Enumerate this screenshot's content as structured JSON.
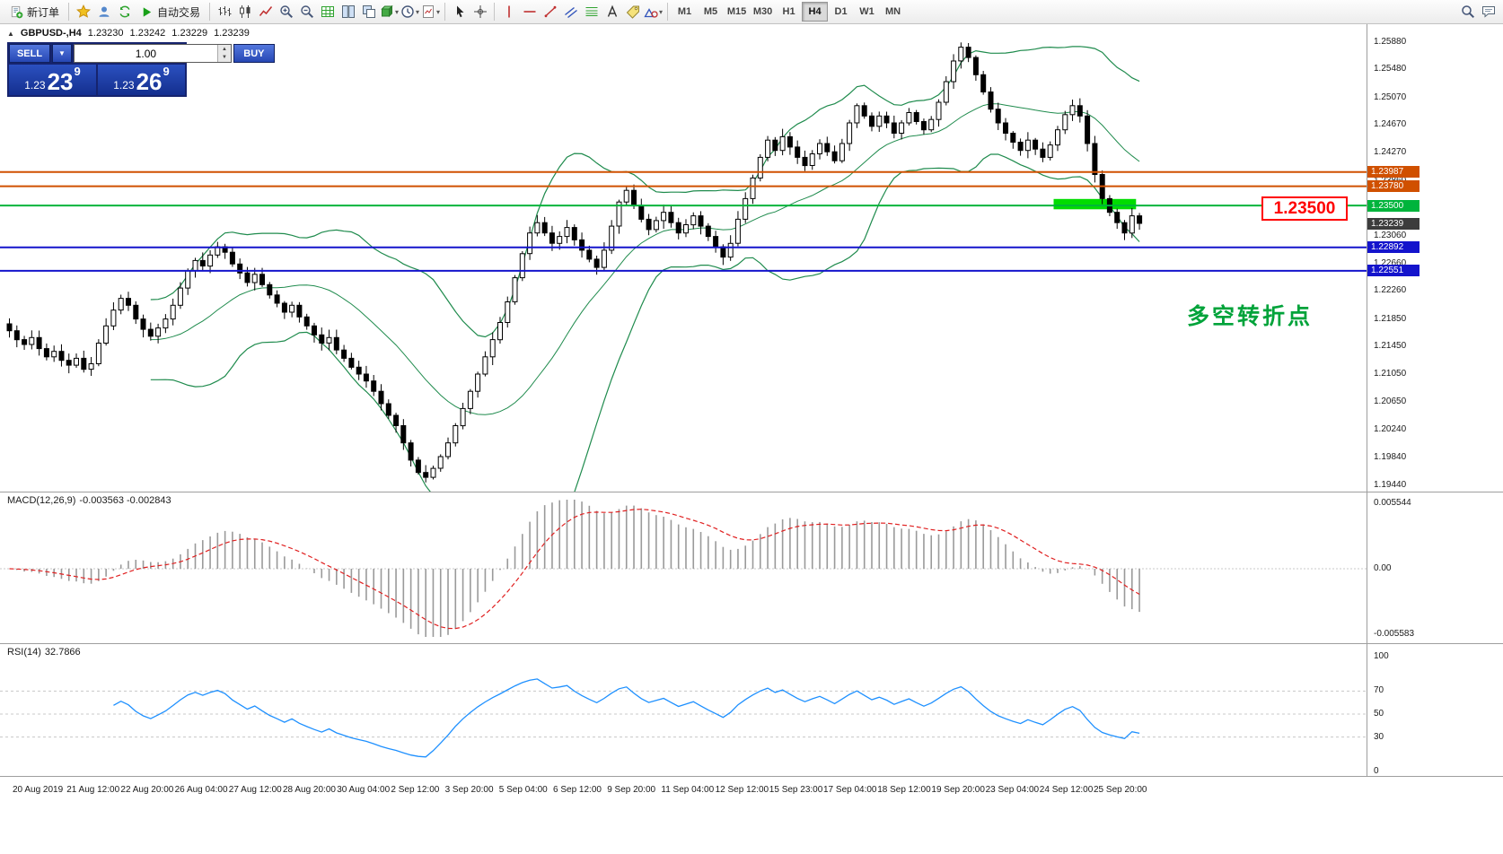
{
  "toolbar": {
    "new_order_label": "新订单",
    "autotrading_label": "自动交易",
    "caret_icon": "▾",
    "timeframes": [
      "M1",
      "M5",
      "M15",
      "M30",
      "H1",
      "H4",
      "D1",
      "W1",
      "MN"
    ],
    "active_timeframe": "H4",
    "items": [
      {
        "t": "button",
        "name": "new-order-button",
        "icon": "new-order-icon",
        "label_key": "new_order_label"
      },
      {
        "t": "sep"
      },
      {
        "t": "icon",
        "name": "favorites-button",
        "icon": "favorites-icon"
      },
      {
        "t": "icon",
        "name": "profiles-button",
        "icon": "profile-icon"
      },
      {
        "t": "icon",
        "name": "refresh-button",
        "icon": "refresh-icon"
      },
      {
        "t": "button",
        "name": "autotrading-button",
        "icon": "play-icon",
        "label_key": "autotrading_label"
      },
      {
        "t": "sep"
      },
      {
        "t": "icon",
        "name": "bar-chart-button",
        "icon": "bar-chart-icon"
      },
      {
        "t": "icon",
        "name": "candlestick-chart-button",
        "icon": "candlestick-chart-icon"
      },
      {
        "t": "icon",
        "name": "line-chart-button",
        "icon": "line-chart-icon"
      },
      {
        "t": "icon",
        "name": "zoom-in-button",
        "icon": "zoom-in-icon"
      },
      {
        "t": "icon",
        "name": "zoom-out-button",
        "icon": "zoom-out-icon"
      },
      {
        "t": "icon",
        "name": "grid-button",
        "icon": "grid-icon"
      },
      {
        "t": "icon",
        "name": "tile-windows-button",
        "icon": "tile-windows-icon"
      },
      {
        "t": "icon",
        "name": "cascade-windows-button",
        "icon": "cascade-windows-icon"
      },
      {
        "t": "icon",
        "name": "indicators-button",
        "icon": "indicators-icon",
        "caret": true
      },
      {
        "t": "icon",
        "name": "periods-button",
        "icon": "periods-icon",
        "caret": true
      },
      {
        "t": "icon",
        "name": "templates-button",
        "icon": "templates-icon",
        "caret": true
      },
      {
        "t": "sep"
      },
      {
        "t": "icon",
        "name": "cursor-button",
        "icon": "cursor-icon"
      },
      {
        "t": "icon",
        "name": "crosshair-button",
        "icon": "crosshair-icon"
      },
      {
        "t": "sep"
      },
      {
        "t": "icon",
        "name": "vertical-line-button",
        "icon": "vertical-line-icon"
      },
      {
        "t": "icon",
        "name": "horizontal-line-button",
        "icon": "horizontal-line-icon"
      },
      {
        "t": "icon",
        "name": "trendline-button",
        "icon": "trendline-icon"
      },
      {
        "t": "icon",
        "name": "channel-button",
        "icon": "channel-icon"
      },
      {
        "t": "icon",
        "name": "fibonacci-button",
        "icon": "fibonacci-icon"
      },
      {
        "t": "icon",
        "name": "text-button",
        "icon": "text-icon"
      },
      {
        "t": "icon",
        "name": "label-button",
        "icon": "label-icon"
      },
      {
        "t": "icon",
        "name": "shapes-button",
        "icon": "shapes-icon",
        "caret": true
      },
      {
        "t": "sep"
      },
      {
        "t": "timeframes"
      },
      {
        "t": "spacer"
      },
      {
        "t": "icon",
        "name": "search-button",
        "icon": "search-icon"
      },
      {
        "t": "icon",
        "name": "chat-button",
        "icon": "chat-icon"
      }
    ]
  },
  "quote_bar": {
    "trend_icon": "▲",
    "symbol": "GBPUSD-,H4",
    "open": "1.23230",
    "high": "1.23242",
    "low": "1.23229",
    "close": "1.23239"
  },
  "trade_panel": {
    "sell_label": "SELL",
    "buy_label": "BUY",
    "volume": "1.00",
    "dropdown_icon": "▼",
    "volume_up_icon": "▲",
    "volume_down_icon": "▼",
    "sell_small": "1.23",
    "sell_big": "23",
    "sell_sup": "9",
    "buy_small": "1.23",
    "buy_big": "26",
    "buy_sup": "9"
  },
  "price_scale": [
    "1.25880",
    "1.25480",
    "1.25070",
    "1.24670",
    "1.24270",
    "1.23860",
    "1.23460",
    "1.23060",
    "1.22660",
    "1.22260",
    "1.21850",
    "1.21450",
    "1.21050",
    "1.20650",
    "1.20240",
    "1.19840",
    "1.19440"
  ],
  "price_tags": [
    {
      "label": "1.23987",
      "price": 1.23987,
      "color": "#d05000",
      "type": "line"
    },
    {
      "label": "1.23780",
      "price": 1.2378,
      "color": "#d05000",
      "type": "line"
    },
    {
      "label": "1.23500",
      "price": 1.235,
      "color": "#00b43c",
      "type": "line"
    },
    {
      "label": "1.23239",
      "price": 1.23239,
      "color": "#3c3c3c",
      "type": "current"
    },
    {
      "label": "1.22892",
      "price": 1.22892,
      "color": "#1414cc",
      "type": "line"
    },
    {
      "label": "1.22551",
      "price": 1.22551,
      "color": "#1414cc",
      "type": "line"
    }
  ],
  "highlight_rect": {
    "price_top": 1.23595,
    "price_bottom": 1.23445,
    "bar_start": 141,
    "bar_end": 151,
    "color": "#00dc00"
  },
  "callout": {
    "text": "1.23500",
    "color": "#ff0000"
  },
  "annotation": {
    "text": "多空转折点",
    "color": "#00a33a"
  },
  "macd": {
    "title": "MACD(12,26,9)",
    "values": "-0.003563 -0.002843",
    "scale_top": "0.005544",
    "scale_mid": "0.00",
    "scale_bottom": "-0.005583"
  },
  "rsi": {
    "title": "RSI(14)",
    "value": "32.7866",
    "scale": [
      "100",
      "70",
      "50",
      "30",
      "0"
    ],
    "levels": [
      70,
      50,
      30
    ]
  },
  "dates": [
    "20 Aug 2019",
    "21 Aug 12:00",
    "22 Aug 20:00",
    "26 Aug 04:00",
    "27 Aug 12:00",
    "28 Aug 20:00",
    "30 Aug 04:00",
    "2 Sep 12:00",
    "3 Sep 20:00",
    "5 Sep 04:00",
    "6 Sep 12:00",
    "9 Sep 20:00",
    "11 Sep 04:00",
    "12 Sep 12:00",
    "15 Sep 23:00",
    "17 Sep 04:00",
    "18 Sep 12:00",
    "19 Sep 20:00",
    "23 Sep 04:00",
    "24 Sep 12:00",
    "25 Sep 20:00"
  ],
  "colors": {
    "bull_candle": "#ffffff",
    "bear_candle": "#000000",
    "candle_border": "#000000",
    "bollinger": "#1f8b4d",
    "macd_histogram": "#9a9a9a",
    "macd_signal": "#e02020",
    "rsi_line": "#1e90ff",
    "resistance_line": "#d05000",
    "pivot_line": "#00b43c",
    "support_line": "#1414cc"
  },
  "chart_data": {
    "type": "candlestick",
    "symbol": "GBPUSD-",
    "timeframe": "H4",
    "y_range": [
      1.1944,
      1.2588
    ],
    "x_range_labels": [
      "20 Aug 2019",
      "25 Sep 20:00"
    ],
    "horizontal_lines": [
      1.23987,
      1.2378,
      1.235,
      1.22892,
      1.22551
    ],
    "current_price": 1.23239,
    "indicators": {
      "bollinger_period": 20,
      "bollinger_dev": 2,
      "macd": [
        12,
        26,
        9
      ],
      "rsi_period": 14
    },
    "closes": [
      1.2168,
      1.2155,
      1.2148,
      1.2158,
      1.2142,
      1.213,
      1.2138,
      1.2125,
      1.2118,
      1.2128,
      1.2112,
      1.212,
      1.215,
      1.2175,
      1.2198,
      1.2215,
      1.2205,
      1.2185,
      1.217,
      1.216,
      1.2172,
      1.2185,
      1.2205,
      1.223,
      1.2255,
      1.227,
      1.2262,
      1.2278,
      1.229,
      1.2282,
      1.2265,
      1.2252,
      1.2238,
      1.225,
      1.2235,
      1.222,
      1.2208,
      1.2195,
      1.2205,
      1.2188,
      1.2175,
      1.2162,
      1.215,
      1.2158,
      1.214,
      1.2128,
      1.2115,
      1.2105,
      1.2095,
      1.208,
      1.2062,
      1.2045,
      1.203,
      1.2005,
      1.198,
      1.1962,
      1.1955,
      1.1968,
      1.1985,
      1.2005,
      1.203,
      1.2055,
      1.208,
      1.2105,
      1.213,
      1.2155,
      1.218,
      1.221,
      1.2245,
      1.228,
      1.231,
      1.2325,
      1.231,
      1.2295,
      1.2305,
      1.2318,
      1.23,
      1.2285,
      1.2272,
      1.226,
      1.2285,
      1.232,
      1.2355,
      1.2372,
      1.235,
      1.233,
      1.2315,
      1.2328,
      1.234,
      1.2325,
      1.231,
      1.2322,
      1.2335,
      1.232,
      1.2305,
      1.229,
      1.2275,
      1.2295,
      1.233,
      1.236,
      1.239,
      1.242,
      1.2445,
      1.243,
      1.245,
      1.2435,
      1.242,
      1.2408,
      1.2425,
      1.244,
      1.2428,
      1.2415,
      1.244,
      1.247,
      1.2495,
      1.248,
      1.2465,
      1.248,
      1.247,
      1.2455,
      1.247,
      1.2485,
      1.2472,
      1.246,
      1.2475,
      1.25,
      1.253,
      1.256,
      1.258,
      1.2565,
      1.254,
      1.2515,
      1.249,
      1.247,
      1.2455,
      1.2442,
      1.243,
      1.2445,
      1.2432,
      1.242,
      1.2438,
      1.246,
      1.2482,
      1.2495,
      1.248,
      1.244,
      1.2395,
      1.236,
      1.234,
      1.2325,
      1.231,
      1.2335,
      1.2324
    ]
  }
}
